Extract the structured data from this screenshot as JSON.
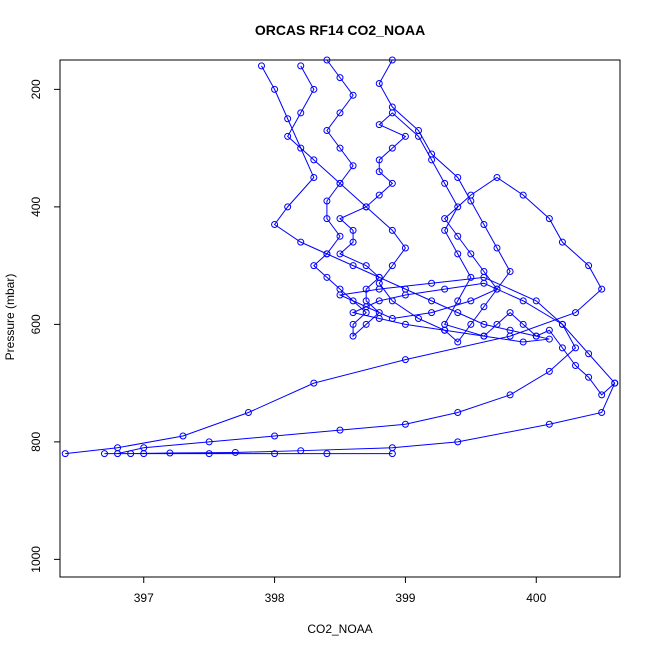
{
  "chart_data": {
    "type": "line",
    "title": "ORCAS RF14 CO2_NOAA",
    "xlabel": "CO2_NOAA",
    "ylabel": "Pressure (mbar)",
    "xlim": [
      396.36,
      400.64
    ],
    "ylim": [
      150,
      1030
    ],
    "y_reversed": true,
    "grid": false,
    "xticks": [
      397,
      398,
      399,
      400
    ],
    "yticks": [
      200,
      400,
      600,
      800,
      1000
    ],
    "series": [
      {
        "color": "#0000ff",
        "x": [
          398.4,
          398.5,
          398.6,
          398.5,
          398.4,
          398.5,
          398.6,
          398.5,
          398.4,
          398.4,
          398.5,
          398.4,
          398.3,
          398.4,
          398.5,
          398.6,
          398.7,
          398.6,
          398.6,
          398.7,
          398.8,
          398.7,
          398.7,
          398.8,
          398.7,
          398.5,
          398.6,
          398.6,
          398.5,
          398.7,
          398.8,
          398.9,
          398.8,
          398.8,
          398.9,
          399.0,
          398.8,
          398.9,
          399.1,
          399.2,
          399.3,
          399.4,
          399.3,
          399.4,
          399.5,
          399.4,
          399.3,
          399.6,
          399.7,
          399.8,
          399.9,
          400.0,
          400.1,
          400.2,
          400.3,
          400.4,
          400.5,
          400.6,
          400.5,
          400.1,
          399.4,
          398.9,
          398.2,
          397.7,
          397.2,
          396.9,
          396.7,
          397.0,
          397.5,
          398.0,
          398.4,
          398.9
        ],
        "y": [
          150,
          180,
          210,
          240,
          270,
          300,
          330,
          360,
          390,
          420,
          450,
          480,
          500,
          520,
          540,
          560,
          580,
          600,
          620,
          600,
          580,
          560,
          540,
          520,
          500,
          480,
          460,
          440,
          420,
          400,
          380,
          360,
          340,
          320,
          300,
          280,
          260,
          240,
          280,
          320,
          360,
          400,
          440,
          480,
          520,
          560,
          600,
          620,
          600,
          580,
          600,
          620,
          610,
          640,
          670,
          690,
          720,
          700,
          750,
          770,
          800,
          810,
          815,
          818,
          819,
          820,
          820,
          820,
          820,
          820,
          820,
          820
        ]
      },
      {
        "color": "#0000ff",
        "x": [
          398.2,
          398.3,
          398.2,
          398.1,
          398.3,
          398.5,
          398.7,
          398.9,
          399.0,
          398.9,
          398.8,
          398.9,
          399.1,
          399.3,
          399.4,
          399.5,
          399.6,
          399.7,
          399.6,
          399.5,
          399.4,
          399.3,
          399.5,
          399.7,
          399.9,
          400.1,
          400.2,
          400.4,
          400.5,
          400.3,
          399.8,
          399.0,
          398.3,
          397.8,
          397.3,
          396.8,
          396.4
        ],
        "y": [
          160,
          200,
          240,
          280,
          320,
          360,
          400,
          440,
          470,
          500,
          530,
          560,
          590,
          610,
          630,
          600,
          570,
          540,
          510,
          480,
          450,
          420,
          380,
          350,
          380,
          420,
          460,
          500,
          540,
          580,
          620,
          660,
          700,
          750,
          790,
          810,
          820
        ]
      },
      {
        "color": "#0000ff",
        "x": [
          398.9,
          398.8,
          398.9,
          399.1,
          399.2,
          399.4,
          399.5,
          399.6,
          399.7,
          399.8,
          399.7,
          399.5,
          399.2,
          398.9,
          398.7,
          398.5,
          398.8,
          399.2,
          399.6,
          400.0,
          400.2,
          400.3,
          400.1,
          399.8,
          399.4,
          399.0,
          398.5,
          398.0,
          397.5,
          397.0,
          396.8
        ],
        "y": [
          150,
          190,
          230,
          270,
          310,
          350,
          390,
          430,
          470,
          510,
          540,
          560,
          580,
          590,
          570,
          550,
          540,
          530,
          520,
          560,
          600,
          640,
          680,
          720,
          750,
          770,
          780,
          790,
          800,
          810,
          820
        ]
      },
      {
        "color": "#0000ff",
        "x": [
          397.9,
          398.0,
          398.1,
          398.2,
          398.3,
          398.1,
          398.0,
          398.2,
          398.4,
          398.6,
          398.8,
          399.0,
          399.2,
          399.4,
          399.6,
          399.8,
          400.0,
          400.1,
          399.9,
          399.6,
          399.3,
          399.0,
          398.8,
          398.6,
          398.8,
          399.0,
          399.3,
          399.6,
          399.9,
          400.2,
          400.4,
          400.6
        ],
        "y": [
          160,
          200,
          250,
          300,
          350,
          400,
          430,
          460,
          480,
          500,
          520,
          540,
          560,
          580,
          600,
          610,
          620,
          625,
          630,
          620,
          610,
          600,
          590,
          580,
          560,
          550,
          540,
          530,
          560,
          600,
          650,
          700
        ]
      }
    ]
  }
}
